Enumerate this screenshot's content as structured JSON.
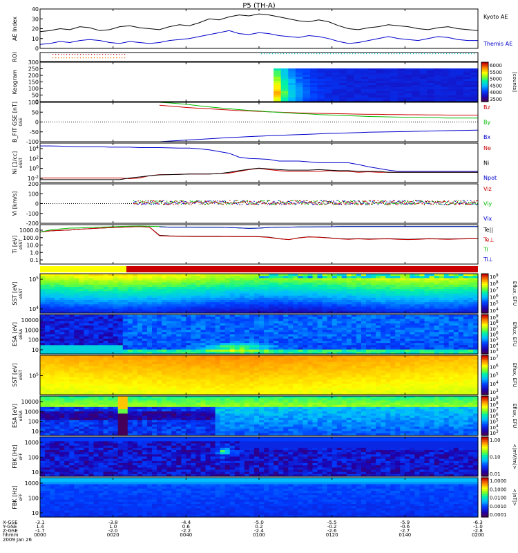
{
  "title": "P5 (TH-A)",
  "colors": {
    "black": "#000000",
    "blue": "#0000cc",
    "red": "#cc0000",
    "green": "#00bb00",
    "cyan": "#00cccc",
    "orange": "#ff6600",
    "yellow": "#ffff00"
  },
  "chart_data": [
    {
      "type": "line",
      "panel": "ae",
      "ylabel": "AE Index",
      "ylim": [
        0,
        40
      ],
      "yticks": [
        0,
        10,
        20,
        30,
        40
      ],
      "series": [
        {
          "name": "Kyoto AE",
          "color": "#000000",
          "values": [
            17,
            18,
            20,
            19,
            22,
            21,
            18,
            19,
            22,
            23,
            21,
            20,
            19,
            22,
            24,
            23,
            26,
            30,
            29,
            32,
            34,
            33,
            35,
            34,
            32,
            30,
            28,
            27,
            29,
            27,
            23,
            20,
            19,
            21,
            22,
            24,
            23,
            22,
            20,
            19,
            21,
            22,
            20,
            19,
            18
          ]
        },
        {
          "name": "Themis AE",
          "color": "#0000cc",
          "values": [
            4,
            5,
            7,
            6,
            8,
            9,
            8,
            6,
            5,
            7,
            6,
            5,
            6,
            8,
            9,
            10,
            12,
            14,
            16,
            18,
            15,
            14,
            16,
            15,
            13,
            12,
            11,
            13,
            12,
            10,
            7,
            5,
            6,
            8,
            10,
            12,
            10,
            9,
            8,
            10,
            12,
            11,
            9,
            8,
            8
          ]
        }
      ]
    },
    {
      "type": "line",
      "panel": "roi",
      "ylabel": "ROI"
    },
    {
      "type": "heatmap",
      "panel": "keogram",
      "ylabel": "Keogram",
      "ylim": [
        0,
        300
      ],
      "yticks": [
        0,
        50,
        100,
        150,
        200,
        250,
        300
      ],
      "colorbar": {
        "min": 3500,
        "max": 6000,
        "ticks": [
          "6000",
          "5500",
          "5000",
          "4500",
          "4000",
          "3500"
        ],
        "label": "[counts]"
      },
      "data_start_frac": 0.54
    },
    {
      "type": "line",
      "panel": "bfit",
      "ylabel": "B_FIT GSE [nT]",
      "ylim": [
        -100,
        100
      ],
      "yticks": [
        -100,
        -50,
        0,
        50,
        100
      ],
      "series": [
        {
          "name": "Bz",
          "color": "#cc0000",
          "values": [
            null,
            null,
            null,
            null,
            null,
            null,
            null,
            null,
            null,
            null,
            null,
            null,
            85,
            81,
            77,
            73,
            70,
            67,
            64,
            61,
            58,
            56,
            54,
            52,
            50,
            48,
            46,
            45,
            44,
            43,
            42,
            41,
            40,
            39,
            39,
            38,
            38,
            37,
            37,
            36,
            36,
            35,
            35,
            35,
            35
          ]
        },
        {
          "name": "By",
          "color": "#00bb00",
          "values": [
            null,
            null,
            null,
            null,
            null,
            null,
            null,
            null,
            null,
            null,
            null,
            null,
            100,
            97,
            93,
            88,
            82,
            77,
            72,
            67,
            63,
            59,
            56,
            52,
            49,
            46,
            43,
            41,
            38,
            36,
            34,
            32,
            30,
            28,
            27,
            26,
            25,
            24,
            23,
            22,
            21,
            20,
            20,
            20,
            20
          ]
        },
        {
          "name": "Bx",
          "color": "#0000cc",
          "values": [
            null,
            null,
            null,
            null,
            null,
            null,
            null,
            null,
            null,
            null,
            null,
            null,
            -100,
            -97,
            -94,
            -91,
            -88,
            -85,
            -82,
            -79,
            -77,
            -74,
            -72,
            -70,
            -68,
            -66,
            -64,
            -62,
            -60,
            -58,
            -57,
            -55,
            -54,
            -52,
            -51,
            -50,
            -49,
            -48,
            -47,
            -46,
            -45,
            -44,
            -43,
            -42,
            -41
          ]
        }
      ]
    },
    {
      "type": "line",
      "panel": "ni",
      "ylabel": "Ni  [1/cc]",
      "yscale": "log",
      "yticks": [
        "10^4",
        "10^2",
        "10^0",
        "10^-2"
      ],
      "series": [
        {
          "name": "Ne",
          "color": "#cc0000",
          "values": [
            0.02,
            0.02,
            0.02,
            0.02,
            0.02,
            0.02,
            0.02,
            0.02,
            0.02,
            0.015,
            0.02,
            0.05,
            0.08,
            0.08,
            0.09,
            0.1,
            0.1,
            0.1,
            0.12,
            0.15,
            0.3,
            0.6,
            1,
            0.6,
            0.4,
            0.3,
            0.3,
            0.3,
            0.3,
            0.4,
            0.3,
            0.3,
            0.2,
            0.25,
            0.2,
            0.2,
            0.2,
            0.2,
            0.2,
            0.2,
            0.2,
            0.2,
            0.2,
            0.2,
            0.2
          ]
        },
        {
          "name": "Ni",
          "color": "#000000",
          "values": [
            0.01,
            0.01,
            0.01,
            0.01,
            0.01,
            0.01,
            0.01,
            0.01,
            0.01,
            0.02,
            0.03,
            0.05,
            0.07,
            0.08,
            0.09,
            0.1,
            0.1,
            0.1,
            0.12,
            0.2,
            0.4,
            0.7,
            1.1,
            0.8,
            0.6,
            0.5,
            0.5,
            0.5,
            0.6,
            0.5,
            0.4,
            0.4,
            0.3,
            0.3,
            0.3,
            0.2,
            0.2,
            0.2,
            0.2,
            0.2,
            0.2,
            0.2,
            0.2,
            0.2,
            0.2
          ]
        },
        {
          "name": "Npot",
          "color": "#0000cc",
          "values": [
            10000,
            10000,
            9000,
            8000,
            7000,
            7000,
            7000,
            6000,
            6000,
            6000,
            5000,
            5000,
            5000,
            4500,
            4000,
            4000,
            3000,
            2000,
            1000,
            500,
            100,
            60,
            50,
            40,
            20,
            20,
            20,
            15,
            10,
            10,
            10,
            10,
            5,
            2,
            1,
            0.5,
            0.3,
            0.3,
            0.3,
            0.3,
            0.3,
            0.3,
            0.3,
            0.3,
            0.3
          ]
        }
      ]
    },
    {
      "type": "scatter",
      "panel": "vi",
      "ylabel": "Vi [km/s]",
      "ylim": [
        -200,
        200
      ],
      "yticks": [
        -200,
        -100,
        0,
        100,
        200
      ],
      "series": [
        {
          "name": "Vi z",
          "color": "#cc0000",
          "values": [
            0
          ]
        },
        {
          "name": "Vi y",
          "color": "#00bb00",
          "values": [
            0
          ]
        },
        {
          "name": "Vi x",
          "color": "#0000cc",
          "values": [
            0
          ]
        }
      ]
    },
    {
      "type": "line",
      "panel": "ti",
      "ylabel": "Ti  [eV]",
      "yscale": "log",
      "yticks": [
        "1000.0",
        "100.0",
        "10.0",
        "1.0",
        "0.1"
      ],
      "series": [
        {
          "name": "Te||",
          "color": "#000000",
          "values": [
            500,
            700,
            800,
            900,
            1100,
            1300,
            1500,
            1700,
            1900,
            2100,
            2300,
            2000,
            200,
            170,
            160,
            155,
            150,
            150,
            150,
            145,
            140,
            140,
            140,
            120,
            80,
            60,
            100,
            130,
            120,
            100,
            80,
            70,
            80,
            70,
            75,
            80,
            70,
            65,
            70,
            80,
            75,
            70,
            75,
            80,
            80
          ]
        },
        {
          "name": "Te⊥",
          "color": "#cc0000",
          "values": [
            500,
            700,
            800,
            900,
            1100,
            1300,
            1500,
            1700,
            1900,
            2100,
            2300,
            2000,
            180,
            160,
            150,
            145,
            140,
            140,
            140,
            140,
            135,
            135,
            135,
            110,
            75,
            60,
            95,
            125,
            115,
            95,
            75,
            65,
            75,
            65,
            70,
            75,
            65,
            60,
            65,
            75,
            70,
            65,
            70,
            75,
            75
          ]
        },
        {
          "name": "Ti",
          "color": "#00bb00",
          "values": [
            500,
            900,
            1200,
            1500,
            1600,
            1800,
            2000,
            2200,
            2400,
            2600,
            2700,
            2500,
            2300,
            2000,
            2000,
            2000,
            1900,
            1900,
            1900,
            1800,
            1600,
            1400,
            1500,
            1800,
            2000,
            2000,
            2100,
            2100,
            2200,
            2200,
            2300,
            2300,
            2300,
            2300,
            2300,
            2300,
            2300,
            2300,
            2300,
            2300,
            2300,
            2300,
            2300,
            2300,
            2300
          ]
        },
        {
          "name": "Ti⊥",
          "color": "#0000cc",
          "values": [
            null,
            null,
            null,
            null,
            null,
            null,
            null,
            null,
            null,
            null,
            null,
            null,
            2200,
            2000,
            2000,
            2000,
            1900,
            1900,
            1900,
            1800,
            1600,
            1400,
            1500,
            1800,
            2000,
            2000,
            2100,
            2100,
            2200,
            2200,
            2300,
            2300,
            2300,
            2300,
            2300,
            2300,
            2300,
            2300,
            2300,
            2300,
            2300,
            2300,
            2300,
            2300,
            2300
          ]
        }
      ]
    },
    {
      "type": "heatmap",
      "panel": "sst_e",
      "ylabel": "SST  [eV]",
      "yticks": [
        "10^5",
        "10^4"
      ],
      "colorbar": {
        "ticks": [
          "10^9",
          "10^8",
          "10^7",
          "10^6",
          "10^5",
          "10^4"
        ],
        "label": "Eflux, EFU"
      }
    },
    {
      "type": "heatmap",
      "panel": "esa_e",
      "ylabel": "ESA  [eV]",
      "yticks": [
        "10000",
        "1000",
        "100",
        "10"
      ],
      "colorbar": {
        "ticks": [
          "10^9",
          "10^8",
          "10^7",
          "10^6",
          "10^5",
          "10^4",
          "10^3"
        ],
        "label": "Eflux, EFU"
      }
    },
    {
      "type": "heatmap",
      "panel": "sst_i",
      "ylabel": "SST  [eV]",
      "yticks": [
        "10^5"
      ],
      "colorbar": {
        "ticks": [
          "10^7",
          "10^6",
          "10^5",
          "10^4",
          "10^3"
        ],
        "label": "Eflux, EFU"
      }
    },
    {
      "type": "heatmap",
      "panel": "esa_i",
      "ylabel": "ESA  [eV]",
      "yticks": [
        "10000",
        "1000",
        "100",
        "10"
      ],
      "colorbar": {
        "ticks": [
          "10^9",
          "10^8",
          "10^7",
          "10^6",
          "10^5",
          "10^4",
          "10^3"
        ],
        "label": "Eflux, EFU"
      }
    },
    {
      "type": "heatmap",
      "panel": "fbk_e",
      "ylabel": "FBK  [Hz]",
      "yticks": [
        "1000",
        "100",
        "10"
      ],
      "colorbar": {
        "ticks": [
          "1.00",
          "0.10",
          "0.01"
        ],
        "label": "<|mV/m|>"
      }
    },
    {
      "type": "heatmap",
      "panel": "fbk_b",
      "ylabel": "FBK  [Hz]",
      "yticks": [
        "1000",
        "100",
        "10"
      ],
      "colorbar": {
        "ticks": [
          "1.0000",
          "0.1000",
          "0.0100",
          "0.0010",
          "0.0001"
        ],
        "label": "<|nT|>"
      }
    }
  ],
  "side_labels": {
    "ae": [
      "Kyoto AE",
      "Themis AE"
    ],
    "bfit": [
      "Bz",
      "By",
      "Bx"
    ],
    "ni": [
      "Ne",
      "Ni",
      "Npot"
    ],
    "vi": [
      "Viz",
      "Viy",
      "Vix"
    ],
    "ti": [
      "Te||",
      "Te⊥",
      "Ti",
      "Ti⊥"
    ]
  },
  "ylabel_sub": {
    "bfit": "GSE",
    "ni": "eSST",
    "ti": "eSST",
    "sst_e": "eSST",
    "esa_e": "eESA",
    "sst_i": "eSST",
    "esa_i": "eESA",
    "fbk_e": "eFF",
    "fbk_b": "eFF"
  },
  "xaxis": {
    "row_labels": [
      "X-GSE",
      "Y-GSE",
      "Z-GSE",
      "hhmm",
      "2009 Jan 26"
    ],
    "ticks": [
      {
        "x": "-3.1",
        "y": "1.4",
        "z": "-1.7",
        "t": "0000"
      },
      {
        "x": "-3.8",
        "y": "1.0",
        "z": "-2.0",
        "t": "0020"
      },
      {
        "x": "-4.4",
        "y": "0.6",
        "z": "-2.2",
        "t": "0040"
      },
      {
        "x": "-5.0",
        "y": "0.2",
        "z": "-2.4",
        "t": "0100"
      },
      {
        "x": "-5.5",
        "y": "-0.2",
        "z": "-2.6",
        "t": "0120"
      },
      {
        "x": "-5.9",
        "y": "-0.6",
        "z": "-2.7",
        "t": "0140"
      },
      {
        "x": "-6.3",
        "y": "-1.0",
        "z": "-2.8",
        "t": "0200"
      }
    ]
  }
}
